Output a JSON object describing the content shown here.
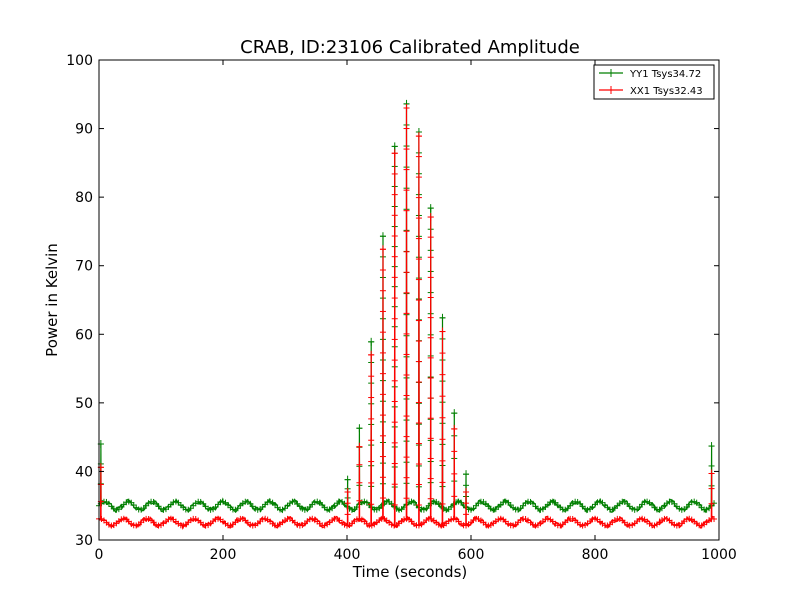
{
  "chart_data": {
    "type": "line",
    "title": "CRAB, ID:23106 Calibrated Amplitude",
    "xlabel": "Time (seconds)",
    "ylabel": "Power in Kelvin",
    "xlim": [
      0,
      1000
    ],
    "ylim": [
      30,
      100
    ],
    "xticks": [
      0,
      200,
      400,
      600,
      800,
      1000
    ],
    "yticks": [
      30,
      40,
      50,
      60,
      70,
      80,
      90,
      100
    ],
    "grid": false,
    "legend_position": "top-right",
    "baseline": {
      "YY1": {
        "mean": 35.0,
        "ripple_amplitude": 0.6,
        "ripple_period": 38
      },
      "XX1": {
        "mean": 32.6,
        "ripple_amplitude": 0.5,
        "ripple_period": 38
      }
    },
    "series": [
      {
        "name": "YY1 Tsys34.72",
        "color": "#007f00",
        "spikes": [
          {
            "x": 3,
            "peak": 44.0
          },
          {
            "x": 401,
            "peak": 38.8
          },
          {
            "x": 420,
            "peak": 46.3
          },
          {
            "x": 439,
            "peak": 58.9
          },
          {
            "x": 458,
            "peak": 74.3
          },
          {
            "x": 477,
            "peak": 87.4
          },
          {
            "x": 496,
            "peak": 93.6
          },
          {
            "x": 516,
            "peak": 89.5
          },
          {
            "x": 535,
            "peak": 78.4
          },
          {
            "x": 554,
            "peak": 62.4
          },
          {
            "x": 573,
            "peak": 48.5
          },
          {
            "x": 592,
            "peak": 39.6
          },
          {
            "x": 988,
            "peak": 43.7
          }
        ]
      },
      {
        "name": "XX1 Tsys32.43",
        "color": "#ff0000",
        "spikes": [
          {
            "x": 3,
            "peak": 40.6
          },
          {
            "x": 401,
            "peak": 37.0
          },
          {
            "x": 420,
            "peak": 43.6
          },
          {
            "x": 439,
            "peak": 57.0
          },
          {
            "x": 458,
            "peak": 72.4
          },
          {
            "x": 477,
            "peak": 86.4
          },
          {
            "x": 496,
            "peak": 93.0
          },
          {
            "x": 516,
            "peak": 88.9
          },
          {
            "x": 535,
            "peak": 77.1
          },
          {
            "x": 554,
            "peak": 60.4
          },
          {
            "x": 573,
            "peak": 46.2
          },
          {
            "x": 592,
            "peak": 37.0
          },
          {
            "x": 988,
            "peak": 39.7
          }
        ]
      }
    ]
  }
}
